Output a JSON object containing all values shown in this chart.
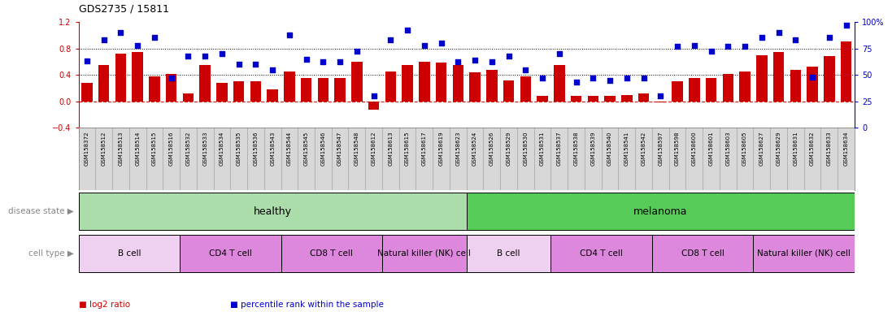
{
  "title": "GDS2735 / 15811",
  "samples": [
    "GSM158372",
    "GSM158512",
    "GSM158513",
    "GSM158514",
    "GSM158515",
    "GSM158516",
    "GSM158532",
    "GSM158533",
    "GSM158534",
    "GSM158535",
    "GSM158536",
    "GSM158543",
    "GSM158544",
    "GSM158545",
    "GSM158546",
    "GSM158547",
    "GSM158548",
    "GSM158612",
    "GSM158613",
    "GSM158615",
    "GSM158617",
    "GSM158619",
    "GSM158623",
    "GSM158524",
    "GSM158526",
    "GSM158529",
    "GSM158530",
    "GSM158531",
    "GSM158537",
    "GSM158538",
    "GSM158539",
    "GSM158540",
    "GSM158541",
    "GSM158542",
    "GSM158597",
    "GSM158598",
    "GSM158600",
    "GSM158601",
    "GSM158603",
    "GSM158605",
    "GSM158627",
    "GSM158629",
    "GSM158631",
    "GSM158632",
    "GSM158633",
    "GSM158634"
  ],
  "log2_ratio": [
    0.28,
    0.55,
    0.72,
    0.75,
    0.38,
    0.42,
    0.12,
    0.55,
    0.28,
    0.3,
    0.3,
    0.18,
    0.45,
    0.35,
    0.35,
    0.35,
    0.6,
    -0.12,
    0.45,
    0.55,
    0.6,
    0.58,
    0.55,
    0.44,
    0.48,
    0.32,
    0.38,
    0.08,
    0.55,
    0.08,
    0.08,
    0.08,
    0.1,
    0.12,
    -0.02,
    0.3,
    0.35,
    0.35,
    0.42,
    0.45,
    0.7,
    0.75,
    0.48,
    0.52,
    0.68,
    0.9
  ],
  "percentile_rank": [
    0.63,
    0.83,
    0.9,
    0.78,
    0.85,
    0.47,
    0.68,
    0.68,
    0.7,
    0.6,
    0.6,
    0.55,
    0.88,
    0.65,
    0.62,
    0.62,
    0.72,
    0.3,
    0.83,
    0.92,
    0.78,
    0.8,
    0.62,
    0.64,
    0.62,
    0.68,
    0.55,
    0.47,
    0.7,
    0.43,
    0.47,
    0.45,
    0.47,
    0.47,
    0.3,
    0.77,
    0.78,
    0.72,
    0.77,
    0.77,
    0.85,
    0.9,
    0.83,
    0.48,
    0.85,
    0.97
  ],
  "bar_color": "#cc0000",
  "dot_color": "#0000cc",
  "ylim_left": [
    -0.4,
    1.2
  ],
  "ylim_right": [
    0,
    100
  ],
  "yticks_left": [
    -0.4,
    0.0,
    0.4,
    0.8,
    1.2
  ],
  "yticks_right_vals": [
    0,
    25,
    50,
    75,
    100
  ],
  "yticks_right_labels": [
    "0",
    "25",
    "50",
    "75",
    "100%"
  ],
  "hlines": [
    0.0,
    0.4,
    0.8
  ],
  "plot_bg": "#f0f0f0",
  "tick_bg": "#d8d8d8",
  "disease_state_groups": [
    {
      "label": "healthy",
      "start": 0,
      "end": 23,
      "color": "#aaddaa"
    },
    {
      "label": "melanoma",
      "start": 23,
      "end": 46,
      "color": "#55cc55"
    }
  ],
  "cell_type_groups": [
    {
      "label": "B cell",
      "start": 0,
      "end": 6,
      "color": "#f0d0f0"
    },
    {
      "label": "CD4 T cell",
      "start": 6,
      "end": 12,
      "color": "#dd88dd"
    },
    {
      "label": "CD8 T cell",
      "start": 12,
      "end": 18,
      "color": "#dd88dd"
    },
    {
      "label": "Natural killer (NK) cell",
      "start": 18,
      "end": 23,
      "color": "#dd88dd"
    },
    {
      "label": "B cell",
      "start": 23,
      "end": 28,
      "color": "#f0d0f0"
    },
    {
      "label": "CD4 T cell",
      "start": 28,
      "end": 34,
      "color": "#dd88dd"
    },
    {
      "label": "CD8 T cell",
      "start": 34,
      "end": 40,
      "color": "#dd88dd"
    },
    {
      "label": "Natural killer (NK) cell",
      "start": 40,
      "end": 46,
      "color": "#dd88dd"
    }
  ],
  "legend_items": [
    {
      "color": "#cc0000",
      "label": "log2 ratio"
    },
    {
      "color": "#0000cc",
      "label": "percentile rank within the sample"
    }
  ]
}
